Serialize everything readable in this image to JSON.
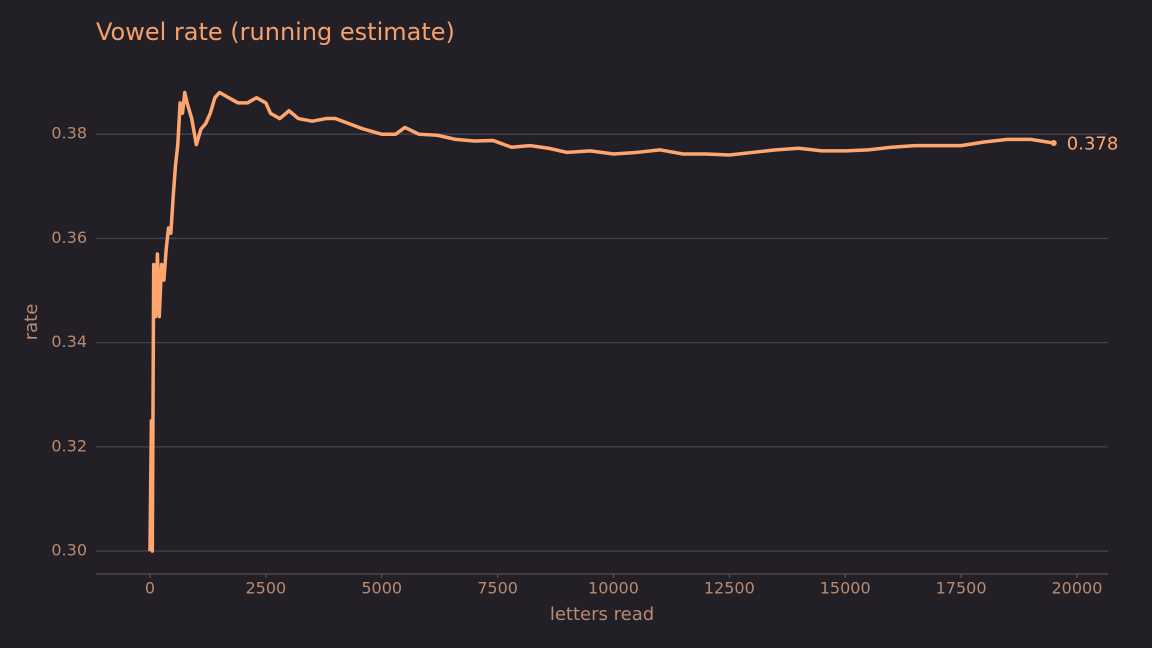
{
  "chart_data": {
    "type": "line",
    "title": "Vowel rate (running estimate)",
    "x_label": "letters read",
    "y_label": "rate",
    "xlim": [
      -1165,
      20670
    ],
    "ylim": [
      0.2956,
      0.3904
    ],
    "xticks": [
      0,
      2500,
      5000,
      7500,
      10000,
      12500,
      15000,
      17500,
      20000
    ],
    "yticks": [
      {
        "value": 0.3,
        "label": "0.30"
      },
      0.32,
      0.34,
      0.36,
      0.38
    ],
    "grid": true,
    "x": [
      0,
      30,
      50,
      80,
      120,
      160,
      200,
      250,
      300,
      350,
      400,
      450,
      500,
      550,
      600,
      650,
      700,
      750,
      800,
      900,
      1000,
      1100,
      1200,
      1300,
      1400,
      1500,
      1700,
      1900,
      2100,
      2300,
      2500,
      2600,
      2800,
      3000,
      3200,
      3500,
      3800,
      4000,
      4300,
      4600,
      5000,
      5300,
      5500,
      5800,
      6200,
      6600,
      7000,
      7400,
      7800,
      8200,
      8600,
      9000,
      9500,
      10000,
      10500,
      11000,
      11500,
      12000,
      12500,
      13000,
      13500,
      14000,
      14500,
      15000,
      15500,
      16000,
      16500,
      17000,
      17500,
      18000,
      18500,
      19000,
      19500
    ],
    "series": [
      {
        "color": "#ffa66e",
        "values": [
          0.3,
          0.325,
          0.3,
          0.355,
          0.345,
          0.357,
          0.345,
          0.355,
          0.352,
          0.358,
          0.362,
          0.361,
          0.368,
          0.374,
          0.378,
          0.386,
          0.384,
          0.388,
          0.386,
          0.383,
          0.378,
          0.381,
          0.382,
          0.384,
          0.387,
          0.388,
          0.387,
          0.386,
          0.386,
          0.387,
          0.386,
          0.384,
          0.383,
          0.3845,
          0.383,
          0.3825,
          0.383,
          0.383,
          0.382,
          0.381,
          0.38,
          0.38,
          0.3813,
          0.38,
          0.3798,
          0.379,
          0.3787,
          0.3788,
          0.3775,
          0.3778,
          0.3773,
          0.3765,
          0.3768,
          0.3762,
          0.3765,
          0.377,
          0.3762,
          0.3762,
          0.376,
          0.3765,
          0.377,
          0.3773,
          0.3768,
          0.3768,
          0.377,
          0.3775,
          0.3778,
          0.3778,
          0.3778,
          0.3785,
          0.379,
          0.379,
          0.3783
        ]
      }
    ],
    "annotations": [
      {
        "text": "0.378",
        "x": 19500,
        "y": 0.378
      }
    ]
  }
}
